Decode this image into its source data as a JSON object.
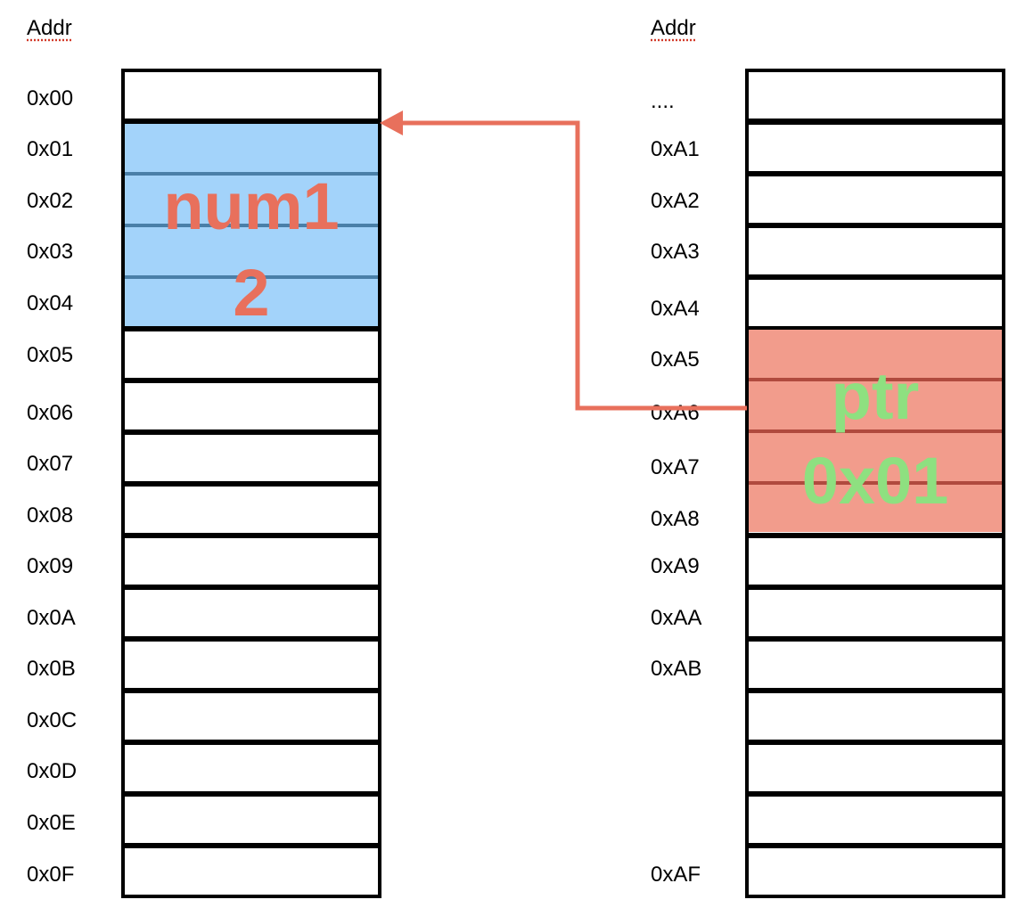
{
  "left_column": {
    "header": "Addr",
    "addresses": [
      "0x00",
      "0x01",
      "0x02",
      "0x03",
      "0x04",
      "0x05",
      "0x06",
      "0x07",
      "0x08",
      "0x09",
      "0x0A",
      "0x0B",
      "0x0C",
      "0x0D",
      "0x0E",
      "0x0F"
    ]
  },
  "right_column": {
    "header": "Addr",
    "addresses": [
      "....",
      "0xA1",
      "0xA2",
      "0xA3",
      "0xA4",
      "0xA5",
      "0xA6",
      "0xA7",
      "0xA8",
      "0xA9",
      "0xAA",
      "0xAB",
      "",
      "",
      "",
      "0xAF"
    ]
  },
  "variables": {
    "num1": {
      "name": "num1",
      "value": "2",
      "fill": "#a3d3fa",
      "text_color": "#e8705c",
      "separator_color": "#4a7fa8"
    },
    "ptr": {
      "name": "ptr",
      "value": "0x01",
      "fill": "#f29c8c",
      "text_color": "#8ee080",
      "separator_color": "#b04a3e"
    }
  },
  "arrow": {
    "color": "#e8705c"
  }
}
